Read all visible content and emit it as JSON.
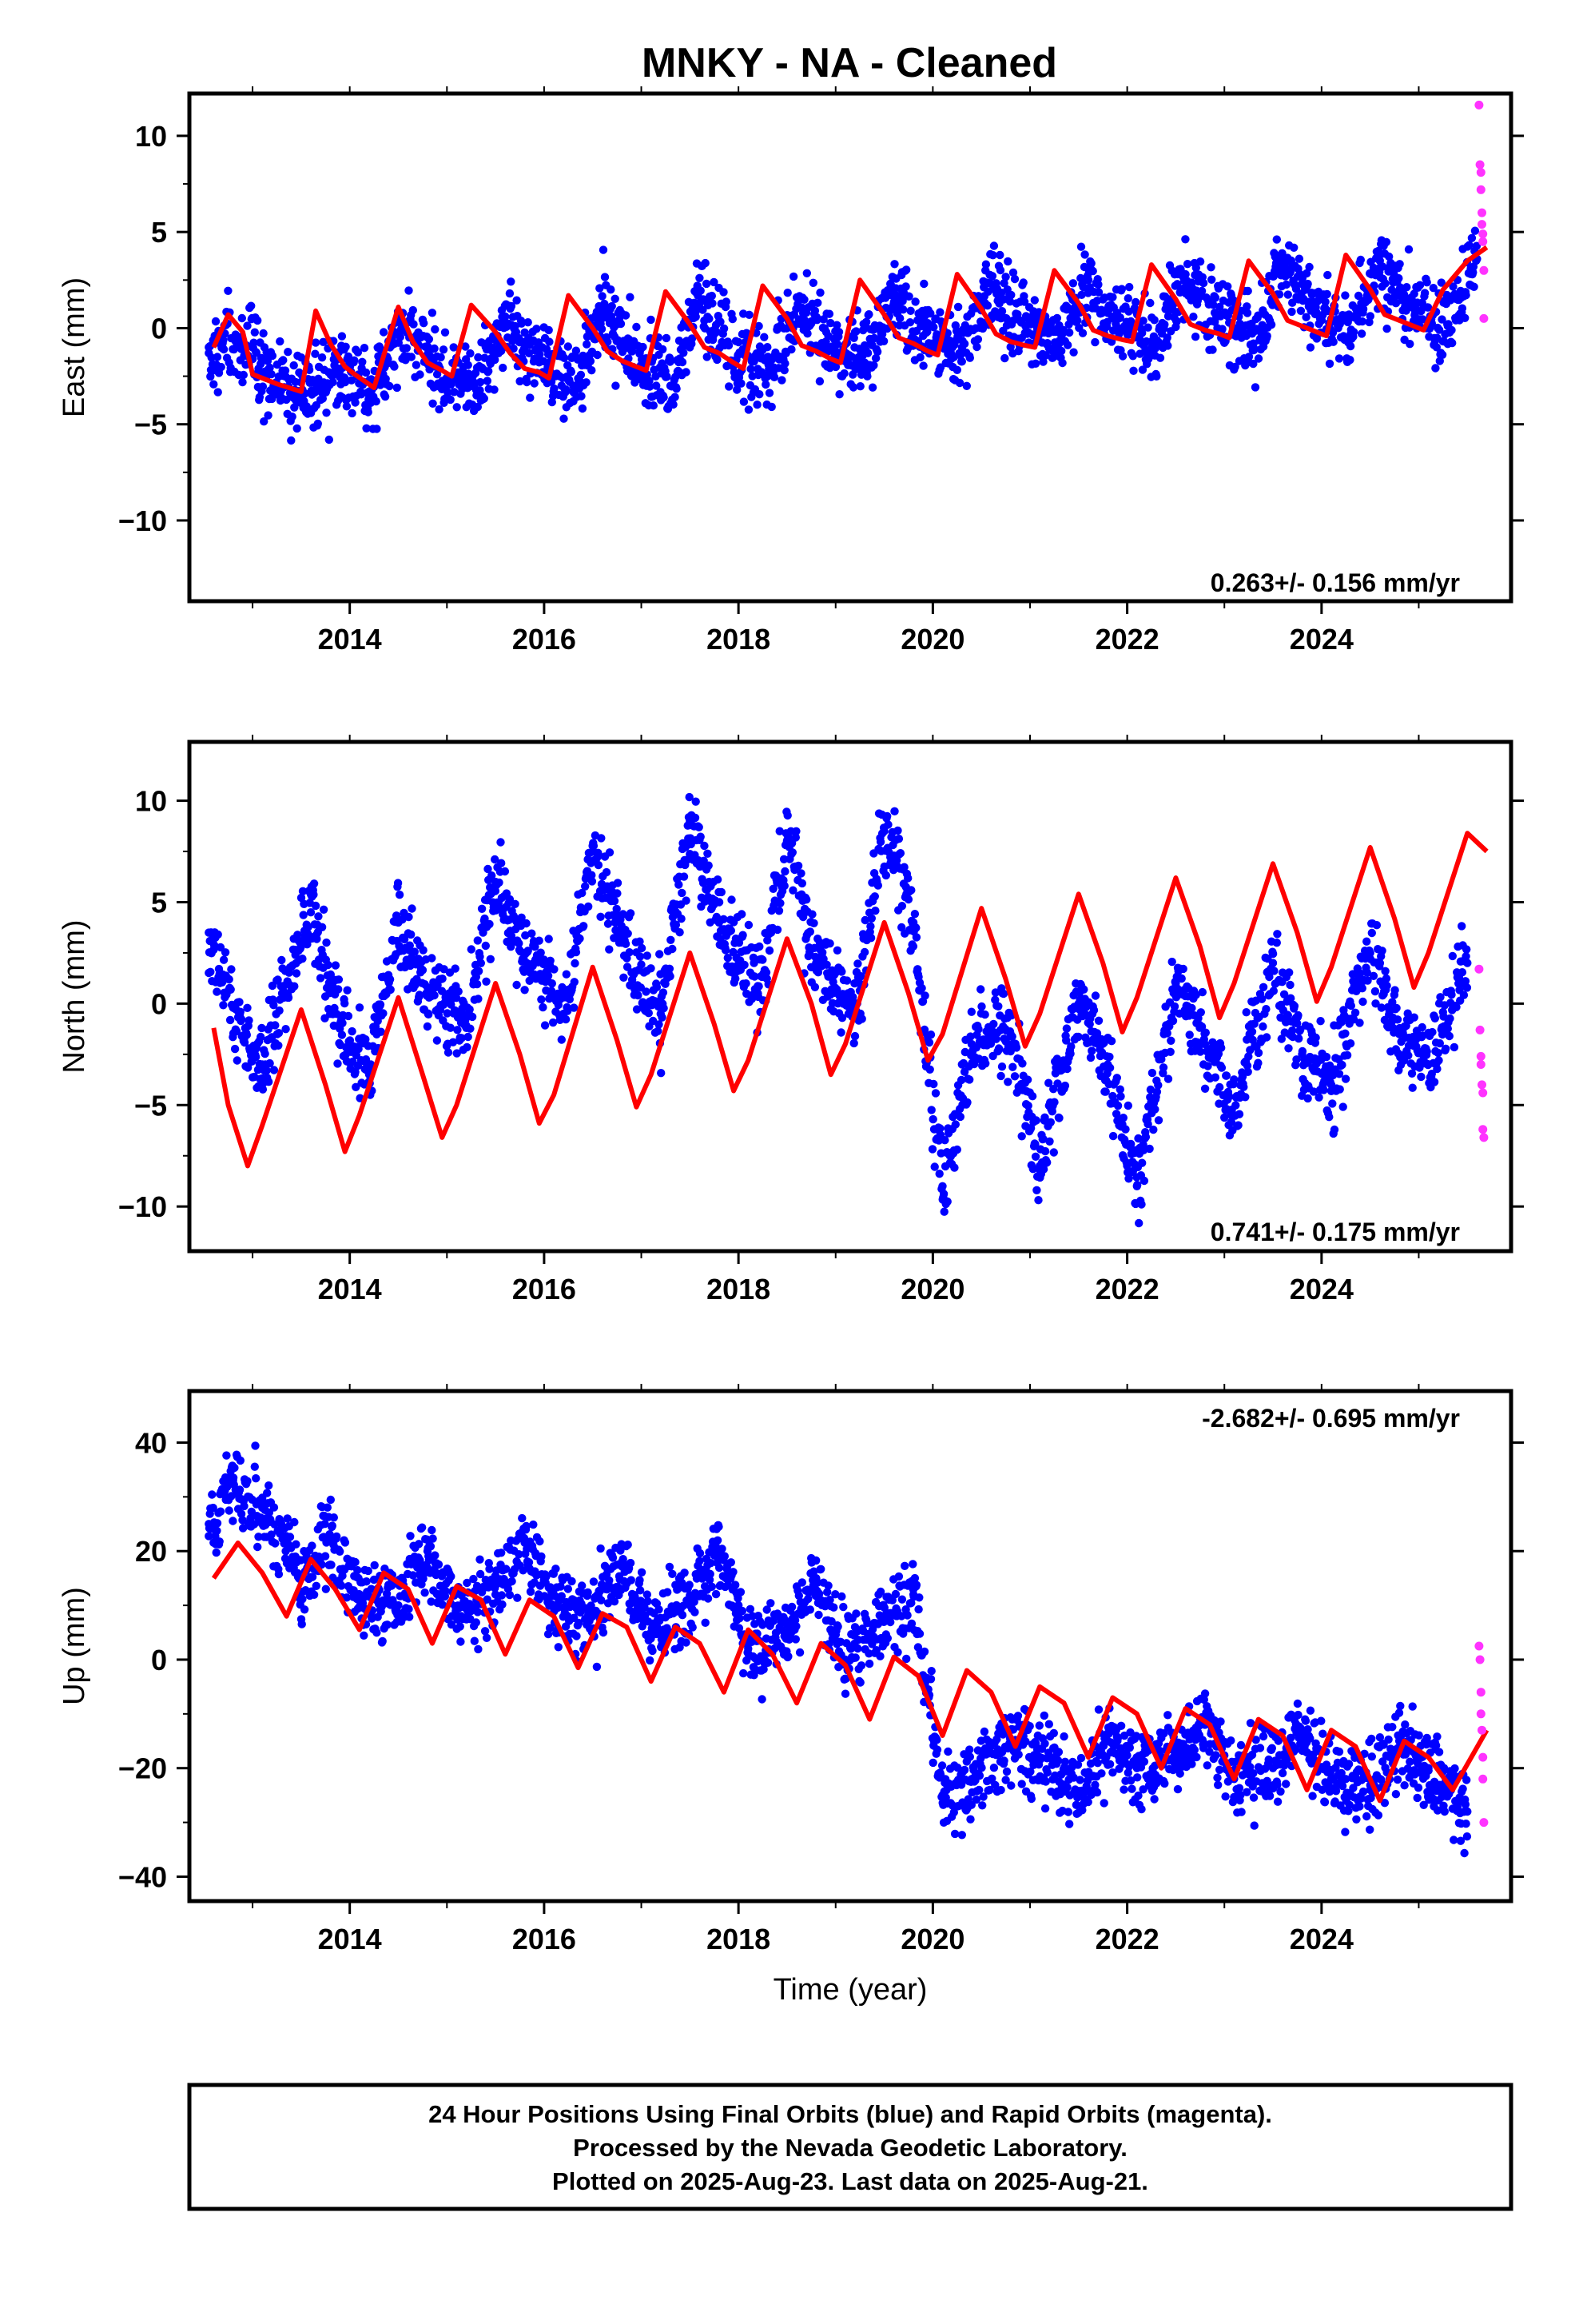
{
  "page": {
    "background": "#ffffff"
  },
  "chart_data": [
    {
      "type": "scatter",
      "title": "MNKY  - NA - Cleaned",
      "xlabel": "",
      "ylabel": "East (mm)",
      "xlim": [
        2012.35,
        2025.95
      ],
      "ylim": [
        -14.2,
        12.2
      ],
      "xticks": [
        2014,
        2016,
        2018,
        2020,
        2022,
        2024
      ],
      "xtick_labels": [
        "2014",
        "2016",
        "2018",
        "2020",
        "2022",
        "2024"
      ],
      "yticks": [
        -10,
        -5,
        0,
        5,
        10
      ],
      "ytick_labels": [
        "−10",
        "−5",
        "0",
        "5",
        "10"
      ],
      "rate_label": "0.263+/- 0.156 mm/yr",
      "grid": false,
      "colors": {
        "final": "#0000ff",
        "rapid": "#ff33ff",
        "model": "#ff0000"
      },
      "series": [
        {
          "x": [
            2012.55,
            2012.85,
            2013.1,
            2013.5,
            2013.9,
            2014.2,
            2014.6,
            2014.9,
            2015.3,
            2015.6,
            2015.9,
            2016.3,
            2016.6,
            2016.9,
            2017.3,
            2017.6,
            2017.9,
            2018.3,
            2018.6,
            2018.9,
            2019.3,
            2019.6,
            2019.9,
            2020.3,
            2020.6,
            2020.9,
            2021.3,
            2021.6,
            2021.9,
            2022.3,
            2022.6,
            2022.9,
            2023.3,
            2023.6,
            2023.9,
            2024.3,
            2024.6,
            2024.9,
            2025.3,
            2025.6
          ],
          "y": [
            -1.3,
            -0.8,
            -2.3,
            -3.6,
            -2.2,
            -3.3,
            0.3,
            -2.4,
            -3.2,
            0.6,
            -1.6,
            -3.0,
            1.0,
            -1.2,
            -3.0,
            1.3,
            -0.9,
            -2.5,
            1.6,
            -0.7,
            -1.8,
            1.8,
            -0.4,
            -1.0,
            2.3,
            0.4,
            -0.8,
            2.5,
            0.6,
            -0.7,
            2.8,
            0.8,
            -0.8,
            3.2,
            1.1,
            -0.3,
            3.5,
            1.3,
            0.1,
            3.6
          ]
        },
        {
          "x": [
            2025.62,
            2025.63,
            2025.64,
            2025.64,
            2025.65,
            2025.65,
            2025.66,
            2025.66,
            2025.67,
            2025.67
          ],
          "y": [
            11.6,
            8.5,
            8.1,
            7.2,
            6.0,
            5.4,
            4.9,
            4.5,
            3.0,
            0.5
          ]
        },
        {
          "x": [
            2012.6,
            2012.75,
            2012.9,
            2013.0,
            2013.25,
            2013.5,
            2013.65,
            2013.8,
            2013.95,
            2014.05,
            2014.25,
            2014.5,
            2014.65,
            2014.8,
            2014.95,
            2015.05,
            2015.25,
            2015.5,
            2015.65,
            2015.8,
            2015.95,
            2016.05,
            2016.25,
            2016.5,
            2016.65,
            2016.8,
            2016.95,
            2017.05,
            2017.25,
            2017.5,
            2017.65,
            2017.8,
            2017.95,
            2018.05,
            2018.25,
            2018.5,
            2018.65,
            2018.8,
            2018.95,
            2019.05,
            2019.25,
            2019.5,
            2019.65,
            2019.8,
            2019.95,
            2020.05,
            2020.25,
            2020.5,
            2020.65,
            2020.8,
            2020.95,
            2021.05,
            2021.25,
            2021.5,
            2021.65,
            2021.8,
            2021.95,
            2022.05,
            2022.25,
            2022.5,
            2022.65,
            2022.8,
            2022.95,
            2023.05,
            2023.25,
            2023.5,
            2023.65,
            2023.8,
            2023.95,
            2024.05,
            2024.25,
            2024.5,
            2024.65,
            2024.8,
            2024.95,
            2025.05,
            2025.25,
            2025.5,
            2025.7
          ],
          "y": [
            -1.0,
            0.7,
            -0.2,
            -2.4,
            -2.9,
            -3.3,
            0.9,
            -0.8,
            -2.0,
            -2.4,
            -3.1,
            1.1,
            -0.7,
            -1.8,
            -2.2,
            -2.5,
            1.2,
            -0.2,
            -1.3,
            -2.1,
            -2.3,
            -2.6,
            1.7,
            0.0,
            -1.2,
            -1.7,
            -2.0,
            -2.2,
            1.9,
            0.2,
            -1.0,
            -1.3,
            -1.8,
            -2.1,
            2.2,
            0.5,
            -0.9,
            -1.2,
            -1.6,
            -1.8,
            2.5,
            0.7,
            -0.5,
            -0.8,
            -1.2,
            -1.4,
            2.8,
            1.0,
            -0.3,
            -0.7,
            -0.9,
            -1.0,
            3.0,
            1.3,
            -0.1,
            -0.4,
            -0.6,
            -0.7,
            3.3,
            1.5,
            0.2,
            -0.1,
            -0.3,
            -0.5,
            3.5,
            1.8,
            0.4,
            0.1,
            -0.2,
            -0.4,
            3.8,
            2.0,
            0.7,
            0.4,
            0.1,
            -0.1,
            2.0,
            3.5,
            4.2
          ]
        }
      ]
    },
    {
      "type": "scatter",
      "title": "",
      "xlabel": "",
      "ylabel": "North (mm)",
      "xlim": [
        2012.35,
        2025.95
      ],
      "ylim": [
        -12.2,
        12.9
      ],
      "xticks": [
        2014,
        2016,
        2018,
        2020,
        2022,
        2024
      ],
      "xtick_labels": [
        "2014",
        "2016",
        "2018",
        "2020",
        "2022",
        "2024"
      ],
      "yticks": [
        -10,
        -5,
        0,
        5,
        10
      ],
      "ytick_labels": [
        "−10",
        "−5",
        "0",
        "5",
        "10"
      ],
      "rate_label": "0.741+/- 0.175 mm/yr",
      "grid": false,
      "colors": {
        "final": "#0000ff",
        "rapid": "#ff33ff",
        "model": "#ff0000"
      },
      "series": [
        {
          "x": [
            2012.55,
            2012.8,
            2013.1,
            2013.6,
            2013.9,
            2014.2,
            2014.5,
            2014.8,
            2015.2,
            2015.5,
            2015.8,
            2016.2,
            2016.5,
            2016.8,
            2017.2,
            2017.5,
            2017.8,
            2018.2,
            2018.5,
            2018.8,
            2019.2,
            2019.5,
            2019.8,
            2020.1,
            2020.4,
            2020.8,
            2021.1,
            2021.5,
            2021.8,
            2022.1,
            2022.5,
            2022.8,
            2023.1,
            2023.5,
            2023.8,
            2024.1,
            2024.5,
            2024.8,
            2025.1,
            2025.5
          ],
          "y": [
            3.5,
            -0.2,
            -3.0,
            4.5,
            -1.0,
            -3.5,
            4.0,
            0.8,
            -1.2,
            6.0,
            2.5,
            -0.5,
            7.5,
            3.0,
            -0.5,
            9.0,
            4.0,
            0.5,
            8.0,
            2.0,
            -0.5,
            8.5,
            4.0,
            -9.0,
            -2.0,
            -1.5,
            -8.0,
            0.0,
            -3.0,
            -9.0,
            1.0,
            -2.0,
            -5.5,
            2.0,
            -2.5,
            -4.0,
            2.5,
            -1.5,
            -3.0,
            2.0
          ]
        },
        {
          "x": [
            2025.62,
            2025.63,
            2025.64,
            2025.64,
            2025.65,
            2025.66,
            2025.66,
            2025.67
          ],
          "y": [
            1.7,
            -1.3,
            -2.6,
            -3.0,
            -4.0,
            -4.4,
            -6.2,
            -6.6
          ]
        },
        {
          "x": [
            2012.6,
            2012.75,
            2012.95,
            2013.1,
            2013.5,
            2013.75,
            2013.95,
            2014.1,
            2014.5,
            2014.75,
            2014.95,
            2015.1,
            2015.5,
            2015.75,
            2015.95,
            2016.1,
            2016.5,
            2016.75,
            2016.95,
            2017.1,
            2017.5,
            2017.75,
            2017.95,
            2018.1,
            2018.5,
            2018.75,
            2018.95,
            2019.1,
            2019.5,
            2019.75,
            2019.95,
            2020.1,
            2020.5,
            2020.75,
            2020.95,
            2021.1,
            2021.5,
            2021.75,
            2021.95,
            2022.1,
            2022.5,
            2022.75,
            2022.95,
            2023.1,
            2023.5,
            2023.75,
            2023.95,
            2024.1,
            2024.5,
            2024.75,
            2024.95,
            2025.1,
            2025.5,
            2025.7
          ],
          "y": [
            -1.2,
            -5.0,
            -8.0,
            -6.0,
            -0.3,
            -4.0,
            -7.3,
            -5.5,
            0.3,
            -3.5,
            -6.6,
            -5.0,
            1.0,
            -2.5,
            -5.9,
            -4.5,
            1.8,
            -1.8,
            -5.1,
            -3.5,
            2.5,
            -1.0,
            -4.3,
            -2.8,
            3.2,
            0.0,
            -3.5,
            -2.0,
            4.0,
            0.5,
            -2.8,
            -1.5,
            4.7,
            1.2,
            -2.1,
            -0.5,
            5.4,
            2.0,
            -1.4,
            0.3,
            6.2,
            2.8,
            -0.7,
            1.0,
            6.9,
            3.5,
            0.1,
            1.8,
            7.7,
            4.2,
            0.8,
            2.5,
            8.4,
            7.5
          ]
        }
      ]
    },
    {
      "type": "scatter",
      "title": "",
      "xlabel": "Time (year)",
      "ylabel": "Up (mm)",
      "xlim": [
        2012.35,
        2025.95
      ],
      "ylim": [
        -44.5,
        49.5
      ],
      "xticks": [
        2014,
        2016,
        2018,
        2020,
        2022,
        2024
      ],
      "xtick_labels": [
        "2014",
        "2016",
        "2018",
        "2020",
        "2022",
        "2024"
      ],
      "yticks": [
        -40,
        -20,
        0,
        20,
        40
      ],
      "ytick_labels": [
        "−40",
        "−20",
        "0",
        "20",
        "40"
      ],
      "rate_label": "-2.682+/- 0.695 mm/yr",
      "grid": false,
      "colors": {
        "final": "#0000ff",
        "rapid": "#ff33ff",
        "model": "#ff0000"
      },
      "series": [
        {
          "x": [
            2012.55,
            2012.8,
            2013.1,
            2013.5,
            2013.8,
            2014.1,
            2014.5,
            2014.8,
            2015.1,
            2015.5,
            2015.8,
            2016.1,
            2016.5,
            2016.8,
            2017.1,
            2017.5,
            2017.8,
            2018.1,
            2018.5,
            2018.8,
            2019.1,
            2019.5,
            2019.8,
            2020.1,
            2020.4,
            2020.8,
            2021.1,
            2021.5,
            2021.8,
            2022.1,
            2022.5,
            2022.8,
            2023.1,
            2023.5,
            2023.8,
            2024.1,
            2024.5,
            2024.8,
            2025.1,
            2025.5
          ],
          "y": [
            25,
            33,
            28,
            15,
            22,
            12,
            10,
            20,
            8,
            12,
            22,
            10,
            8,
            18,
            5,
            10,
            20,
            2,
            5,
            15,
            0,
            8,
            12,
            -25,
            -22,
            -15,
            -18,
            -25,
            -15,
            -20,
            -18,
            -12,
            -22,
            -20,
            -14,
            -22,
            -24,
            -15,
            -20,
            -28
          ]
        },
        {
          "x": [
            2025.62,
            2025.63,
            2025.64,
            2025.64,
            2025.65,
            2025.66,
            2025.66,
            2025.67
          ],
          "y": [
            2.5,
            0.0,
            -6.0,
            -10.0,
            -13.0,
            -18.0,
            -22.0,
            -30.0
          ]
        },
        {
          "x": [
            2012.6,
            2012.85,
            2013.1,
            2013.35,
            2013.6,
            2013.85,
            2014.1,
            2014.35,
            2014.6,
            2014.85,
            2015.1,
            2015.35,
            2015.6,
            2015.85,
            2016.1,
            2016.35,
            2016.6,
            2016.85,
            2017.1,
            2017.35,
            2017.6,
            2017.85,
            2018.1,
            2018.35,
            2018.6,
            2018.85,
            2019.1,
            2019.35,
            2019.6,
            2019.85,
            2020.1,
            2020.35,
            2020.6,
            2020.85,
            2021.1,
            2021.35,
            2021.6,
            2021.85,
            2022.1,
            2022.35,
            2022.6,
            2022.85,
            2023.1,
            2023.35,
            2023.6,
            2023.85,
            2024.1,
            2024.35,
            2024.6,
            2024.85,
            2025.1,
            2025.35,
            2025.7
          ],
          "y": [
            15,
            21.5,
            16,
            8,
            18.5,
            13,
            5.5,
            16,
            13,
            3,
            13.5,
            11,
            1,
            11,
            8,
            -1.5,
            8.5,
            6,
            -4,
            6,
            3,
            -6,
            5.5,
            1,
            -8,
            3,
            -1,
            -11,
            0.5,
            -3,
            -14,
            -2,
            -6,
            -16,
            -5,
            -8,
            -18,
            -7,
            -10,
            -20,
            -9,
            -12,
            -22,
            -11,
            -14,
            -24,
            -13,
            -16,
            -26,
            -15,
            -18,
            -24,
            -13
          ]
        }
      ]
    }
  ],
  "footer": {
    "line1": "24 Hour Positions Using Final Orbits (blue) and Rapid Orbits (magenta).",
    "line2": "Processed by the Nevada Geodetic Laboratory.",
    "line3": "Plotted on 2025-Aug-23. Last data on 2025-Aug-21."
  }
}
